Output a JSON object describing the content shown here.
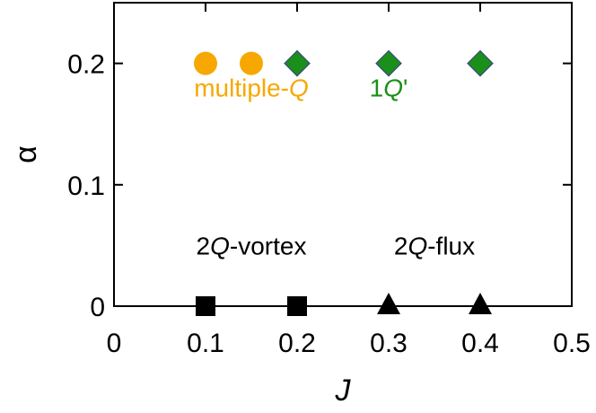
{
  "chart_data": {
    "type": "scatter",
    "xlabel": "J",
    "ylabel": "α",
    "xlim": [
      0,
      0.5
    ],
    "ylim": [
      0,
      0.25
    ],
    "x_ticks": [
      0,
      0.1,
      0.2,
      0.3,
      0.4,
      0.5
    ],
    "x_tick_labels": [
      "0",
      "0.1",
      "0.2",
      "0.3",
      "0.4",
      "0.5"
    ],
    "y_ticks": [
      0,
      0.1,
      0.2
    ],
    "y_tick_labels": [
      "0",
      "0.1",
      "0.2"
    ],
    "grid": false,
    "series": [
      {
        "marker": "circle",
        "color": "#f7a800",
        "points": [
          [
            0.1,
            0.2
          ],
          [
            0.15,
            0.2
          ]
        ]
      },
      {
        "marker": "diamond",
        "color": "#1a8f1a",
        "points": [
          [
            0.2,
            0.2
          ],
          [
            0.3,
            0.2
          ],
          [
            0.4,
            0.2
          ]
        ]
      },
      {
        "marker": "square",
        "color": "#000000",
        "points": [
          [
            0.1,
            0.0
          ],
          [
            0.2,
            0.0
          ]
        ]
      },
      {
        "marker": "triangle",
        "color": "#000000",
        "points": [
          [
            0.3,
            0.0
          ],
          [
            0.4,
            0.0
          ]
        ]
      }
    ],
    "annotations": [
      {
        "prefix": "multiple-",
        "q": "Q",
        "suffix": "",
        "color": "#f7a800",
        "x": 0.15,
        "y": 0.18
      },
      {
        "prefix": "1",
        "q": "Q",
        "suffix": "'",
        "color": "#1a8f1a",
        "x": 0.3,
        "y": 0.18
      },
      {
        "prefix": "2",
        "q": "Q",
        "suffix": "-vortex",
        "color": "#000000",
        "x": 0.15,
        "y": 0.05
      },
      {
        "prefix": "2",
        "q": "Q",
        "suffix": "-flux",
        "color": "#000000",
        "x": 0.35,
        "y": 0.05
      }
    ]
  }
}
